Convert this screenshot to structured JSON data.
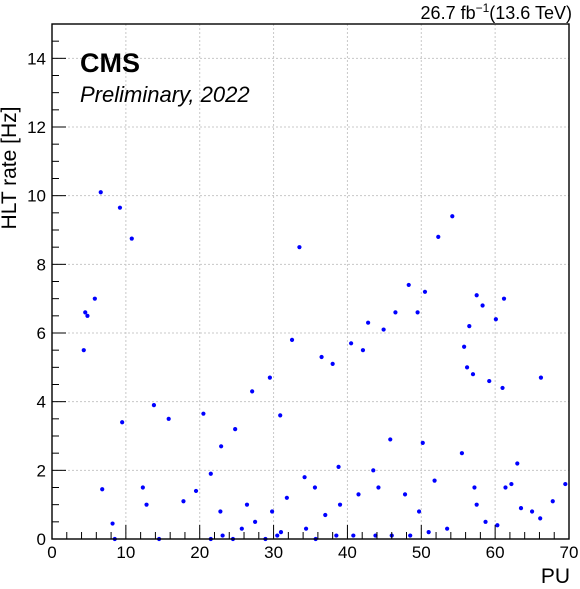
{
  "header": {
    "experiment": "CMS",
    "status": "Preliminary, 2022",
    "lumi_value": "26.7 fb",
    "lumi_exp": "−1",
    "lumi_energy": "(13.6 TeV)"
  },
  "chart_data": {
    "type": "scatter",
    "title": "",
    "xlabel": "PU",
    "ylabel": "HLT rate [Hz]",
    "xlim": [
      0,
      70
    ],
    "ylim": [
      0,
      15
    ],
    "xticks": [
      "0",
      "10",
      "20",
      "30",
      "40",
      "50",
      "60",
      "70"
    ],
    "yticks": [
      "0",
      "2",
      "4",
      "6",
      "8",
      "10",
      "12",
      "14"
    ],
    "grid": true,
    "marker_color": "#0000ff",
    "series": [
      {
        "points": [
          [
            4.5,
            6.6
          ],
          [
            4.8,
            6.5
          ],
          [
            5.8,
            7.0
          ],
          [
            4.3,
            5.5
          ],
          [
            6.6,
            10.1
          ],
          [
            9.2,
            9.65
          ],
          [
            10.8,
            8.75
          ],
          [
            6.8,
            1.45
          ],
          [
            8.2,
            0.45
          ],
          [
            9.5,
            3.4
          ],
          [
            12.3,
            1.5
          ],
          [
            13.8,
            3.9
          ],
          [
            15.8,
            3.5
          ],
          [
            20.5,
            3.65
          ],
          [
            12.8,
            1.0
          ],
          [
            8.5,
            0.0
          ],
          [
            14.5,
            0.0
          ],
          [
            17.8,
            1.1
          ],
          [
            33.5,
            8.5
          ],
          [
            54.2,
            9.4
          ],
          [
            52.3,
            8.8
          ],
          [
            61.2,
            7.0
          ],
          [
            57.5,
            7.1
          ],
          [
            58.3,
            6.8
          ],
          [
            60.1,
            6.4
          ],
          [
            59.2,
            4.6
          ],
          [
            61.0,
            4.4
          ],
          [
            66.2,
            4.7
          ],
          [
            62.2,
            1.6
          ],
          [
            63.5,
            0.9
          ],
          [
            63.0,
            2.2
          ],
          [
            65.0,
            0.8
          ],
          [
            66.1,
            0.6
          ],
          [
            67.8,
            1.1
          ],
          [
            69.5,
            1.6
          ],
          [
            57.2,
            1.5
          ],
          [
            57.5,
            1.0
          ],
          [
            58.7,
            0.5
          ],
          [
            60.3,
            0.4
          ],
          [
            61.4,
            1.5
          ],
          [
            51.0,
            0.2
          ],
          [
            53.5,
            0.3
          ],
          [
            49.7,
            0.8
          ],
          [
            47.8,
            1.3
          ],
          [
            44.2,
            1.5
          ],
          [
            41.5,
            1.3
          ],
          [
            39.0,
            1.0
          ],
          [
            37.0,
            0.7
          ],
          [
            35.6,
            1.5
          ],
          [
            34.2,
            1.8
          ],
          [
            34.4,
            0.3
          ],
          [
            35.7,
            0.0
          ],
          [
            30.5,
            0.1
          ],
          [
            28.9,
            0.0
          ],
          [
            43.8,
            0.1
          ],
          [
            46.0,
            0.1
          ],
          [
            48.5,
            0.1
          ],
          [
            40.8,
            0.1
          ],
          [
            38.5,
            0.1
          ],
          [
            27.5,
            0.5
          ],
          [
            29.8,
            0.8
          ],
          [
            31.8,
            1.2
          ],
          [
            25.7,
            0.3
          ],
          [
            26.4,
            1.0
          ],
          [
            22.8,
            0.8
          ],
          [
            21.5,
            0.0
          ],
          [
            24.5,
            0.0
          ],
          [
            23.1,
            0.1
          ],
          [
            32.5,
            5.8
          ],
          [
            38.0,
            5.1
          ],
          [
            40.5,
            5.7
          ],
          [
            42.8,
            6.3
          ],
          [
            44.9,
            6.1
          ],
          [
            48.3,
            7.4
          ],
          [
            42.1,
            5.5
          ],
          [
            36.5,
            5.3
          ],
          [
            29.5,
            4.7
          ],
          [
            27.1,
            4.3
          ],
          [
            22.9,
            2.7
          ],
          [
            24.8,
            3.2
          ],
          [
            21.5,
            1.9
          ],
          [
            19.5,
            1.4
          ],
          [
            50.5,
            7.2
          ],
          [
            49.5,
            6.6
          ],
          [
            46.5,
            6.6
          ],
          [
            55.8,
            5.6
          ],
          [
            56.2,
            5.0
          ],
          [
            56.5,
            6.2
          ],
          [
            57.0,
            4.8
          ],
          [
            55.5,
            2.5
          ],
          [
            51.8,
            1.7
          ],
          [
            50.2,
            2.8
          ],
          [
            45.8,
            2.9
          ],
          [
            43.5,
            2.0
          ],
          [
            30.9,
            3.6
          ],
          [
            38.8,
            2.1
          ],
          [
            31.0,
            0.2
          ]
        ]
      }
    ]
  }
}
